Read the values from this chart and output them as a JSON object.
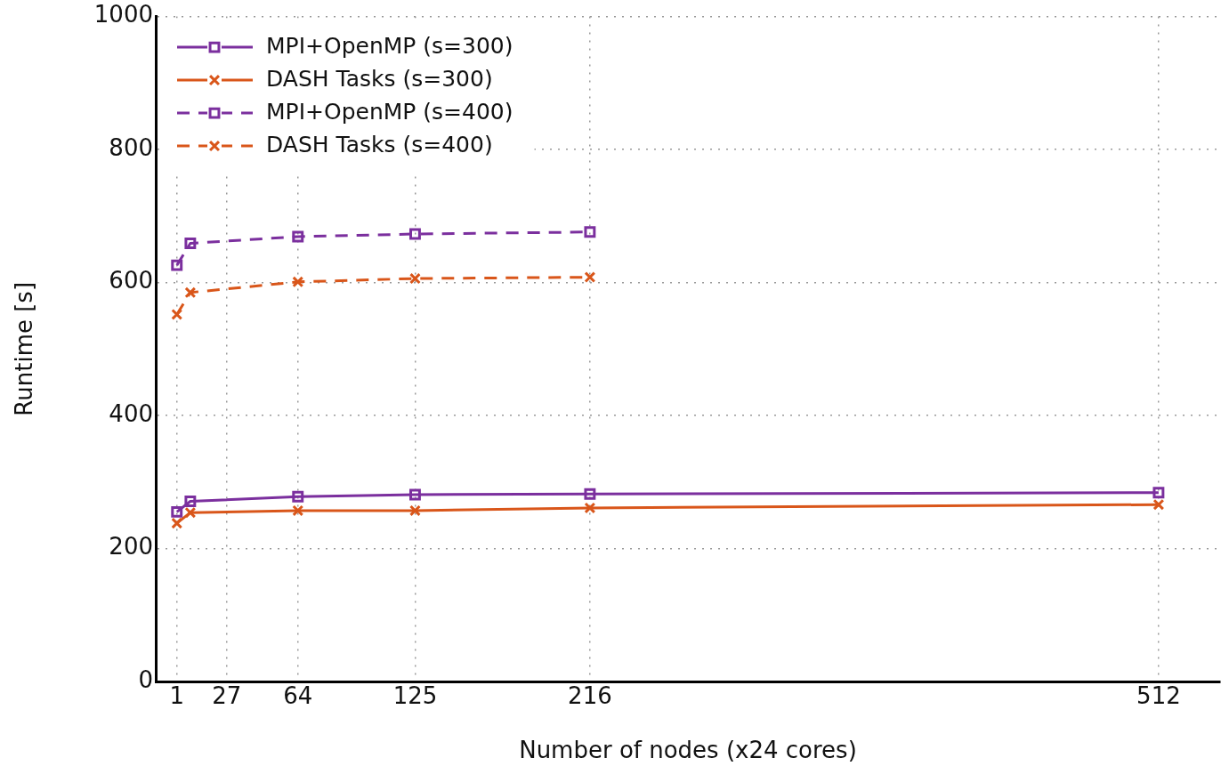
{
  "chart_data": {
    "type": "line",
    "xlabel": "Number of nodes (x24 cores)",
    "ylabel": "Runtime [s]",
    "x": [
      1,
      8,
      64,
      125,
      216,
      512
    ],
    "series": [
      {
        "name": "MPI+OpenMP (s=300)",
        "color": "#7b2f9e",
        "marker": "square",
        "line_style": "solid",
        "values": [
          255,
          271,
          278,
          281,
          282,
          284
        ]
      },
      {
        "name": "DASH Tasks (s=300)",
        "color": "#d9561a",
        "marker": "cross",
        "line_style": "solid",
        "values": [
          238,
          254,
          257,
          257,
          261,
          266
        ]
      },
      {
        "name": "MPI+OpenMP (s=400)",
        "color": "#7b2f9e",
        "marker": "square",
        "line_style": "dashed",
        "values": [
          626,
          659,
          669,
          673,
          676,
          null
        ]
      },
      {
        "name": "DASH Tasks (s=400)",
        "color": "#d9561a",
        "marker": "cross",
        "line_style": "dashed",
        "values": [
          552,
          585,
          601,
          606,
          608,
          null
        ]
      }
    ],
    "xlim": [
      -10,
      544
    ],
    "xticks": [
      1,
      27,
      64,
      125,
      216,
      512
    ],
    "ylim": [
      0,
      1000
    ],
    "yticks": [
      0,
      200,
      400,
      600,
      800,
      1000
    ],
    "grid": true,
    "legend": "top left"
  }
}
